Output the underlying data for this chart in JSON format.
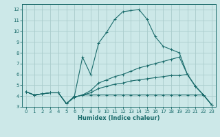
{
  "xlabel": "Humidex (Indice chaleur)",
  "xlim": [
    -0.5,
    23.5
  ],
  "ylim": [
    3,
    12.5
  ],
  "xticks": [
    0,
    1,
    2,
    3,
    4,
    5,
    6,
    7,
    8,
    9,
    10,
    11,
    12,
    13,
    14,
    15,
    16,
    17,
    18,
    19,
    20,
    21,
    22,
    23
  ],
  "yticks": [
    3,
    4,
    5,
    6,
    7,
    8,
    9,
    10,
    11,
    12
  ],
  "background_color": "#cce8e8",
  "grid_color": "#aacccc",
  "line_color": "#1a6b6b",
  "lines": [
    {
      "x": [
        0,
        1,
        2,
        3,
        4,
        5,
        6,
        7,
        8,
        9,
        10,
        11,
        12,
        13,
        14,
        15,
        16,
        17,
        18,
        19,
        20,
        21,
        22,
        23
      ],
      "y": [
        4.4,
        4.1,
        4.2,
        4.3,
        4.3,
        3.3,
        4.0,
        7.6,
        6.0,
        8.9,
        9.9,
        11.1,
        11.8,
        11.9,
        12.0,
        11.1,
        9.5,
        8.6,
        8.3,
        8.0,
        6.0,
        4.9,
        4.1,
        3.2
      ]
    },
    {
      "x": [
        0,
        1,
        2,
        3,
        4,
        5,
        6,
        7,
        8,
        9,
        10,
        11,
        12,
        13,
        14,
        15,
        16,
        17,
        18,
        19,
        20,
        21,
        22,
        23
      ],
      "y": [
        4.4,
        4.1,
        4.2,
        4.3,
        4.3,
        3.3,
        3.9,
        4.1,
        4.5,
        5.2,
        5.5,
        5.8,
        6.0,
        6.3,
        6.6,
        6.8,
        7.0,
        7.2,
        7.4,
        7.6,
        6.0,
        4.9,
        4.1,
        3.2
      ]
    },
    {
      "x": [
        0,
        1,
        2,
        3,
        4,
        5,
        6,
        7,
        8,
        9,
        10,
        11,
        12,
        13,
        14,
        15,
        16,
        17,
        18,
        19,
        20,
        21,
        22,
        23
      ],
      "y": [
        4.4,
        4.1,
        4.2,
        4.3,
        4.3,
        3.3,
        3.9,
        4.1,
        4.3,
        4.7,
        4.9,
        5.1,
        5.2,
        5.4,
        5.5,
        5.6,
        5.7,
        5.8,
        5.9,
        5.9,
        6.0,
        4.9,
        4.1,
        3.2
      ]
    },
    {
      "x": [
        0,
        1,
        2,
        3,
        4,
        5,
        6,
        7,
        8,
        9,
        10,
        11,
        12,
        13,
        14,
        15,
        16,
        17,
        18,
        19,
        20,
        21,
        22,
        23
      ],
      "y": [
        4.4,
        4.1,
        4.2,
        4.3,
        4.3,
        3.3,
        3.9,
        4.1,
        4.1,
        4.1,
        4.1,
        4.1,
        4.1,
        4.1,
        4.1,
        4.1,
        4.1,
        4.1,
        4.1,
        4.1,
        4.1,
        4.1,
        4.1,
        3.2
      ]
    }
  ]
}
